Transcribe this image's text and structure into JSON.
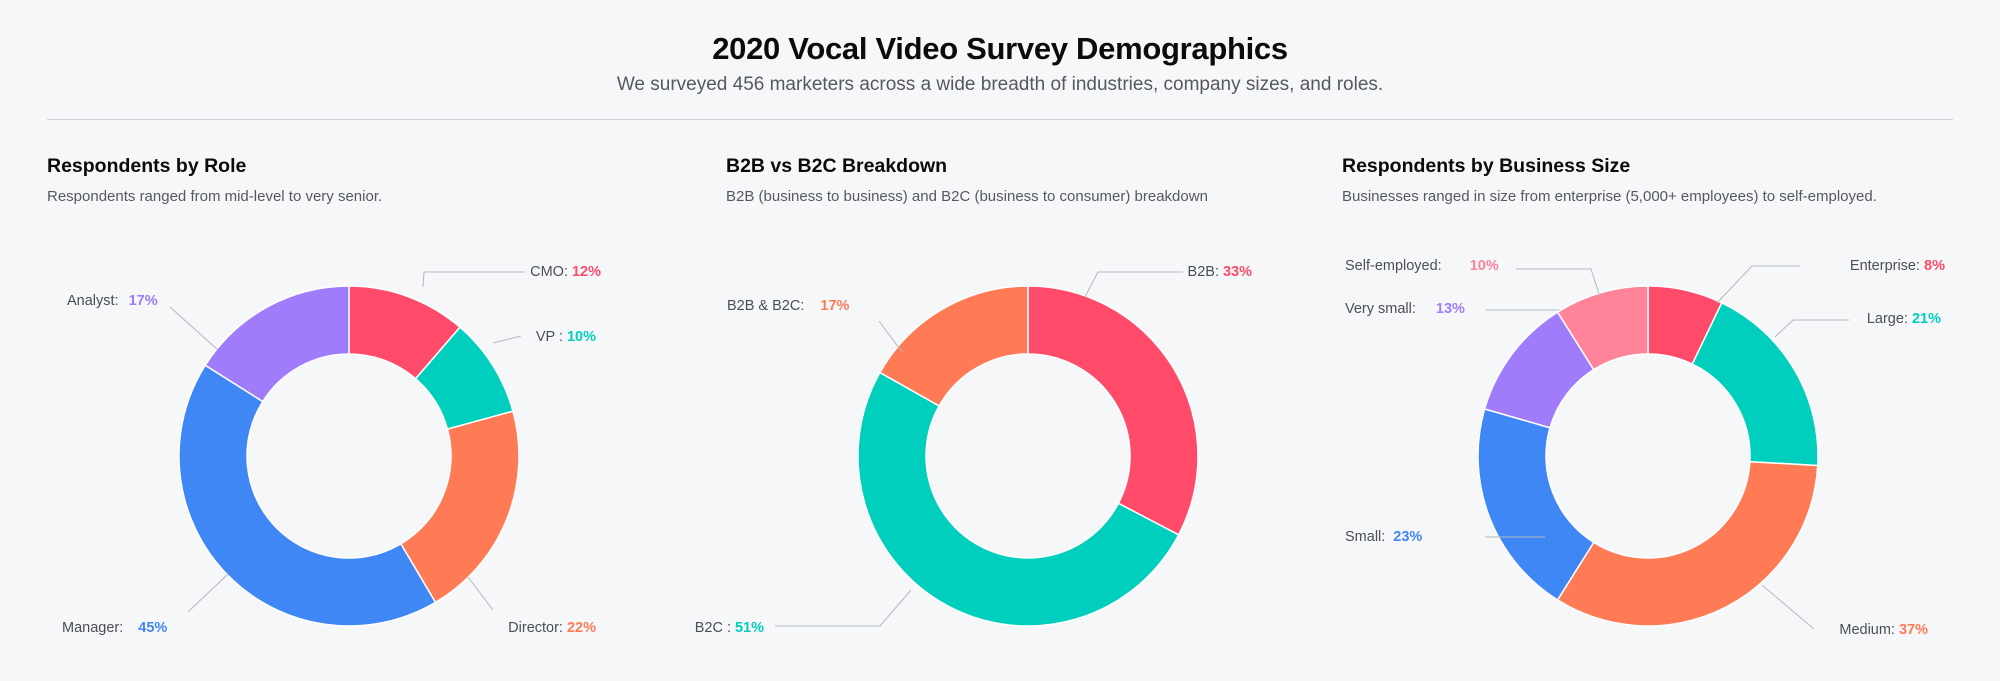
{
  "header": {
    "title": "2020 Vocal Video Survey Demographics",
    "subtitle": "We surveyed 456 marketers across a wide breadth of industries, company sizes, and roles."
  },
  "chart_data": [
    {
      "type": "pie",
      "title": "Respondents by Role",
      "subtitle": "Respondents ranged from mid-level to very senior.",
      "slices": [
        {
          "label": "CMO:",
          "value": 12,
          "value_text": "12%",
          "color": "#ff4a6a"
        },
        {
          "label": "VP :",
          "value": 10,
          "value_text": "10%",
          "color": "#00cfbd"
        },
        {
          "label": "Director:",
          "value": 22,
          "value_text": "22%",
          "color": "#ff7b55"
        },
        {
          "label": "Manager:",
          "value": 45,
          "value_text": "45%",
          "color": "#3f87f5"
        },
        {
          "label": "Analyst:",
          "value": 17,
          "value_text": "17%",
          "color": "#a07cfa"
        }
      ]
    },
    {
      "type": "pie",
      "title": "B2B vs B2C Breakdown",
      "subtitle": "B2B (business to business) and B2C (business to consumer) breakdown",
      "slices": [
        {
          "label": "B2B:",
          "value": 33,
          "value_text": "33%",
          "color": "#ff4a6a"
        },
        {
          "label": "B2C :",
          "value": 51,
          "value_text": "51%",
          "color": "#00cfbd"
        },
        {
          "label": "B2B & B2C:",
          "value": 17,
          "value_text": "17%",
          "color": "#ff7b55"
        }
      ]
    },
    {
      "type": "pie",
      "title": "Respondents by Business Size",
      "subtitle": "Businesses ranged in size from enterprise (5,000+ employees) to self-employed.",
      "slices": [
        {
          "label": "Enterprise:",
          "value": 8,
          "value_text": "8%",
          "color": "#ff4a6a"
        },
        {
          "label": "Large:",
          "value": 21,
          "value_text": "21%",
          "color": "#00cfbd"
        },
        {
          "label": "Medium:",
          "value": 37,
          "value_text": "37%",
          "color": "#ff7b55"
        },
        {
          "label": "Small:",
          "value": 23,
          "value_text": "23%",
          "color": "#3f87f5"
        },
        {
          "label": "Very small:",
          "value": 13,
          "value_text": "13%",
          "color": "#a07cfa"
        },
        {
          "label": "Self-employed:",
          "value": 10,
          "value_text": "10%",
          "color": "#ff8499"
        }
      ]
    }
  ]
}
